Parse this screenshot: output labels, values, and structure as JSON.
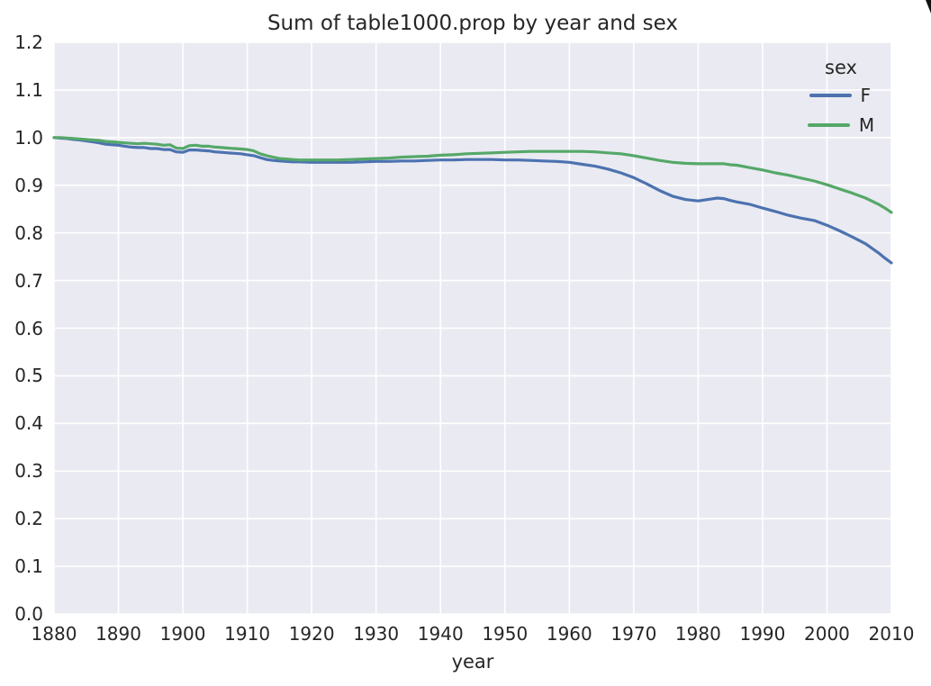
{
  "chart_data": {
    "type": "line",
    "title": "Sum of table1000.prop by year and sex",
    "xlabel": "year",
    "ylabel": "",
    "xlim": [
      1880,
      2010
    ],
    "ylim": [
      0.0,
      1.2
    ],
    "grid": true,
    "background": "#eaeaf2",
    "gridline_color": "#ffffff",
    "x_ticks": [
      1880,
      1890,
      1900,
      1910,
      1920,
      1930,
      1940,
      1950,
      1960,
      1970,
      1980,
      1990,
      2000,
      2010
    ],
    "y_ticks": [
      "0.0",
      "0.1",
      "0.2",
      "0.3",
      "0.4",
      "0.5",
      "0.6",
      "0.7",
      "0.8",
      "0.9",
      "1.0",
      "1.1",
      "1.2"
    ],
    "legend": {
      "title": "sex",
      "position": "upper right",
      "entries": [
        {
          "label": "F",
          "color": "#4c72b0"
        },
        {
          "label": "M",
          "color": "#55a868"
        }
      ]
    },
    "series": [
      {
        "name": "F",
        "color": "#4c72b0",
        "points": [
          [
            1880,
            1.0
          ],
          [
            1881,
            0.999
          ],
          [
            1882,
            0.998
          ],
          [
            1883,
            0.996
          ],
          [
            1884,
            0.995
          ],
          [
            1885,
            0.993
          ],
          [
            1886,
            0.991
          ],
          [
            1887,
            0.989
          ],
          [
            1888,
            0.986
          ],
          [
            1889,
            0.985
          ],
          [
            1890,
            0.984
          ],
          [
            1891,
            0.982
          ],
          [
            1892,
            0.98
          ],
          [
            1893,
            0.979
          ],
          [
            1894,
            0.979
          ],
          [
            1895,
            0.977
          ],
          [
            1896,
            0.977
          ],
          [
            1897,
            0.975
          ],
          [
            1898,
            0.975
          ],
          [
            1899,
            0.97
          ],
          [
            1900,
            0.969
          ],
          [
            1901,
            0.974
          ],
          [
            1902,
            0.974
          ],
          [
            1903,
            0.973
          ],
          [
            1904,
            0.972
          ],
          [
            1905,
            0.97
          ],
          [
            1906,
            0.969
          ],
          [
            1907,
            0.968
          ],
          [
            1908,
            0.967
          ],
          [
            1909,
            0.966
          ],
          [
            1910,
            0.964
          ],
          [
            1911,
            0.962
          ],
          [
            1912,
            0.958
          ],
          [
            1913,
            0.954
          ],
          [
            1914,
            0.952
          ],
          [
            1915,
            0.951
          ],
          [
            1916,
            0.95
          ],
          [
            1917,
            0.949
          ],
          [
            1918,
            0.949
          ],
          [
            1920,
            0.948
          ],
          [
            1922,
            0.948
          ],
          [
            1924,
            0.948
          ],
          [
            1926,
            0.948
          ],
          [
            1928,
            0.949
          ],
          [
            1930,
            0.95
          ],
          [
            1932,
            0.95
          ],
          [
            1934,
            0.951
          ],
          [
            1936,
            0.951
          ],
          [
            1938,
            0.952
          ],
          [
            1940,
            0.953
          ],
          [
            1942,
            0.953
          ],
          [
            1944,
            0.954
          ],
          [
            1946,
            0.954
          ],
          [
            1948,
            0.954
          ],
          [
            1950,
            0.953
          ],
          [
            1952,
            0.953
          ],
          [
            1954,
            0.952
          ],
          [
            1956,
            0.951
          ],
          [
            1958,
            0.95
          ],
          [
            1960,
            0.948
          ],
          [
            1962,
            0.944
          ],
          [
            1964,
            0.94
          ],
          [
            1966,
            0.934
          ],
          [
            1968,
            0.926
          ],
          [
            1970,
            0.916
          ],
          [
            1972,
            0.903
          ],
          [
            1974,
            0.889
          ],
          [
            1976,
            0.877
          ],
          [
            1978,
            0.87
          ],
          [
            1980,
            0.867
          ],
          [
            1982,
            0.871
          ],
          [
            1983,
            0.873
          ],
          [
            1984,
            0.872
          ],
          [
            1985,
            0.868
          ],
          [
            1986,
            0.865
          ],
          [
            1988,
            0.86
          ],
          [
            1990,
            0.852
          ],
          [
            1992,
            0.845
          ],
          [
            1994,
            0.837
          ],
          [
            1996,
            0.831
          ],
          [
            1998,
            0.826
          ],
          [
            2000,
            0.816
          ],
          [
            2002,
            0.804
          ],
          [
            2004,
            0.791
          ],
          [
            2006,
            0.777
          ],
          [
            2008,
            0.758
          ],
          [
            2009,
            0.747
          ],
          [
            2010,
            0.737
          ]
        ]
      },
      {
        "name": "M",
        "color": "#55a868",
        "points": [
          [
            1880,
            1.0
          ],
          [
            1881,
            1.0
          ],
          [
            1882,
            0.999
          ],
          [
            1883,
            0.998
          ],
          [
            1884,
            0.997
          ],
          [
            1885,
            0.996
          ],
          [
            1886,
            0.995
          ],
          [
            1887,
            0.994
          ],
          [
            1888,
            0.992
          ],
          [
            1889,
            0.991
          ],
          [
            1890,
            0.99
          ],
          [
            1891,
            0.989
          ],
          [
            1892,
            0.988
          ],
          [
            1893,
            0.987
          ],
          [
            1894,
            0.988
          ],
          [
            1895,
            0.987
          ],
          [
            1896,
            0.986
          ],
          [
            1897,
            0.984
          ],
          [
            1898,
            0.985
          ],
          [
            1899,
            0.978
          ],
          [
            1900,
            0.977
          ],
          [
            1901,
            0.983
          ],
          [
            1902,
            0.984
          ],
          [
            1903,
            0.982
          ],
          [
            1904,
            0.982
          ],
          [
            1905,
            0.98
          ],
          [
            1906,
            0.979
          ],
          [
            1907,
            0.978
          ],
          [
            1908,
            0.977
          ],
          [
            1909,
            0.976
          ],
          [
            1910,
            0.975
          ],
          [
            1911,
            0.972
          ],
          [
            1912,
            0.966
          ],
          [
            1913,
            0.962
          ],
          [
            1914,
            0.959
          ],
          [
            1915,
            0.956
          ],
          [
            1916,
            0.955
          ],
          [
            1917,
            0.954
          ],
          [
            1918,
            0.953
          ],
          [
            1920,
            0.953
          ],
          [
            1922,
            0.953
          ],
          [
            1924,
            0.953
          ],
          [
            1926,
            0.954
          ],
          [
            1928,
            0.955
          ],
          [
            1930,
            0.956
          ],
          [
            1932,
            0.957
          ],
          [
            1934,
            0.959
          ],
          [
            1936,
            0.96
          ],
          [
            1938,
            0.961
          ],
          [
            1940,
            0.963
          ],
          [
            1942,
            0.964
          ],
          [
            1944,
            0.966
          ],
          [
            1946,
            0.967
          ],
          [
            1948,
            0.968
          ],
          [
            1950,
            0.969
          ],
          [
            1952,
            0.97
          ],
          [
            1954,
            0.971
          ],
          [
            1956,
            0.971
          ],
          [
            1958,
            0.971
          ],
          [
            1960,
            0.971
          ],
          [
            1962,
            0.971
          ],
          [
            1964,
            0.97
          ],
          [
            1966,
            0.968
          ],
          [
            1968,
            0.966
          ],
          [
            1970,
            0.962
          ],
          [
            1972,
            0.957
          ],
          [
            1974,
            0.952
          ],
          [
            1976,
            0.948
          ],
          [
            1978,
            0.946
          ],
          [
            1980,
            0.945
          ],
          [
            1982,
            0.945
          ],
          [
            1983,
            0.945
          ],
          [
            1984,
            0.945
          ],
          [
            1985,
            0.943
          ],
          [
            1986,
            0.942
          ],
          [
            1988,
            0.937
          ],
          [
            1990,
            0.932
          ],
          [
            1992,
            0.926
          ],
          [
            1994,
            0.921
          ],
          [
            1996,
            0.915
          ],
          [
            1998,
            0.909
          ],
          [
            2000,
            0.901
          ],
          [
            2002,
            0.892
          ],
          [
            2004,
            0.883
          ],
          [
            2006,
            0.873
          ],
          [
            2008,
            0.86
          ],
          [
            2009,
            0.852
          ],
          [
            2010,
            0.843
          ]
        ]
      }
    ]
  }
}
